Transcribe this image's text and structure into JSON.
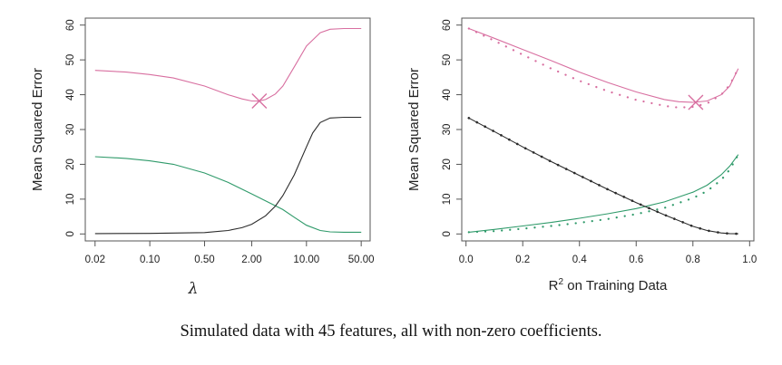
{
  "caption": "Simulated data with 45 features, all with non-zero coefficients.",
  "colors": {
    "mse": "#d86fa0",
    "variance": "#2f9a6a",
    "bias": "#2b2b2b",
    "frame": "#555555"
  },
  "chart_data": [
    {
      "type": "line",
      "xscale": "log",
      "xlabel": "λ",
      "ylabel": "Mean Squared Error",
      "xlim": [
        0.015,
        65
      ],
      "ylim": [
        -2,
        62
      ],
      "xticks": [
        0.02,
        0.1,
        0.5,
        2.0,
        10.0,
        50.0
      ],
      "xtick_labels": [
        "0.02",
        "0.10",
        "0.50",
        "2.00",
        "10.00",
        "50.00"
      ],
      "yticks": [
        0,
        10,
        20,
        30,
        40,
        50,
        60
      ],
      "ytick_labels": [
        "0",
        "10",
        "20",
        "30",
        "40",
        "50",
        "60"
      ],
      "series": [
        {
          "color": "#d86fa0",
          "style": "solid",
          "x": [
            0.02,
            0.05,
            0.1,
            0.2,
            0.5,
            1.0,
            1.5,
            2.0,
            2.5,
            3.0,
            4.0,
            5.0,
            7.0,
            10.0,
            15.0,
            20.0,
            30.0,
            50.0
          ],
          "y": [
            47,
            46.5,
            45.8,
            44.8,
            42.5,
            40.0,
            38.8,
            38.2,
            38.2,
            38.6,
            40.2,
            42.5,
            48.0,
            54.0,
            57.8,
            58.8,
            59.0,
            59.0
          ]
        },
        {
          "color": "#2f9a6a",
          "style": "solid",
          "x": [
            0.02,
            0.05,
            0.1,
            0.2,
            0.5,
            1.0,
            2.0,
            3.0,
            5.0,
            7.0,
            10.0,
            15.0,
            20.0,
            30.0,
            50.0
          ],
          "y": [
            22.2,
            21.7,
            21.0,
            20.0,
            17.5,
            14.8,
            11.5,
            9.5,
            7.0,
            4.8,
            2.5,
            1.0,
            0.6,
            0.5,
            0.5
          ]
        },
        {
          "color": "#2b2b2b",
          "style": "solid",
          "x": [
            0.02,
            0.1,
            0.5,
            1.0,
            1.5,
            2.0,
            3.0,
            4.0,
            5.0,
            7.0,
            10.0,
            12.0,
            15.0,
            20.0,
            30.0,
            50.0
          ],
          "y": [
            0.1,
            0.15,
            0.4,
            1.0,
            1.8,
            2.8,
            5.2,
            8.0,
            11.0,
            17.0,
            25.0,
            29.0,
            32.0,
            33.3,
            33.5,
            33.5
          ]
        }
      ],
      "markers": [
        {
          "shape": "x",
          "x": 2.5,
          "y": 38.2,
          "color": "#d86fa0"
        }
      ]
    },
    {
      "type": "line",
      "xlabel_main": "R",
      "xlabel_sup": "2",
      "xlabel_rest": " on Training Data",
      "ylabel": "Mean Squared Error",
      "xlim": [
        -0.015,
        1.015
      ],
      "ylim": [
        -2,
        62
      ],
      "xticks": [
        0.0,
        0.2,
        0.4,
        0.6,
        0.8,
        1.0
      ],
      "xtick_labels": [
        "0.0",
        "0.2",
        "0.4",
        "0.6",
        "0.8",
        "1.0"
      ],
      "yticks": [
        0,
        10,
        20,
        30,
        40,
        50,
        60
      ],
      "ytick_labels": [
        "0",
        "10",
        "20",
        "30",
        "40",
        "50",
        "60"
      ],
      "series": [
        {
          "color": "#d86fa0",
          "style": "solid",
          "x": [
            0.01,
            0.1,
            0.2,
            0.3,
            0.4,
            0.5,
            0.6,
            0.7,
            0.75,
            0.8,
            0.85,
            0.9,
            0.93,
            0.96
          ],
          "y": [
            59,
            56.2,
            53.0,
            49.8,
            46.5,
            43.5,
            40.8,
            38.6,
            38.0,
            37.8,
            38.2,
            40.0,
            42.5,
            47.5
          ]
        },
        {
          "color": "#d86fa0",
          "style": "dotted",
          "x": [
            0.01,
            0.1,
            0.2,
            0.3,
            0.4,
            0.5,
            0.6,
            0.7,
            0.75,
            0.8,
            0.85,
            0.9,
            0.93,
            0.96
          ],
          "y": [
            59,
            55.5,
            51.5,
            47.5,
            44.0,
            41.0,
            38.5,
            36.8,
            36.3,
            36.5,
            37.5,
            40.0,
            42.8,
            47.5
          ]
        },
        {
          "color": "#2f9a6a",
          "style": "solid",
          "x": [
            0.01,
            0.1,
            0.2,
            0.3,
            0.4,
            0.5,
            0.6,
            0.7,
            0.8,
            0.85,
            0.9,
            0.93,
            0.96
          ],
          "y": [
            0.5,
            1.3,
            2.3,
            3.3,
            4.5,
            5.8,
            7.3,
            9.2,
            12.0,
            14.0,
            17.0,
            19.5,
            22.8
          ]
        },
        {
          "color": "#2f9a6a",
          "style": "dotted",
          "x": [
            0.01,
            0.1,
            0.2,
            0.3,
            0.4,
            0.5,
            0.6,
            0.7,
            0.8,
            0.85,
            0.9,
            0.93,
            0.96
          ],
          "y": [
            0.5,
            0.8,
            1.5,
            2.3,
            3.2,
            4.3,
            5.7,
            7.5,
            10.3,
            12.3,
            15.5,
            18.5,
            22.8
          ]
        },
        {
          "color": "#2b2b2b",
          "style": "solid-dots",
          "x": [
            0.01,
            0.1,
            0.2,
            0.3,
            0.4,
            0.5,
            0.6,
            0.7,
            0.8,
            0.85,
            0.9,
            0.93,
            0.96
          ],
          "y": [
            33.3,
            29.4,
            25.0,
            20.8,
            16.8,
            12.8,
            9.0,
            5.5,
            2.2,
            1.0,
            0.3,
            0.1,
            0.05
          ]
        }
      ],
      "markers": [
        {
          "shape": "x",
          "x": 0.81,
          "y": 37.8,
          "color": "#d86fa0"
        }
      ]
    }
  ]
}
